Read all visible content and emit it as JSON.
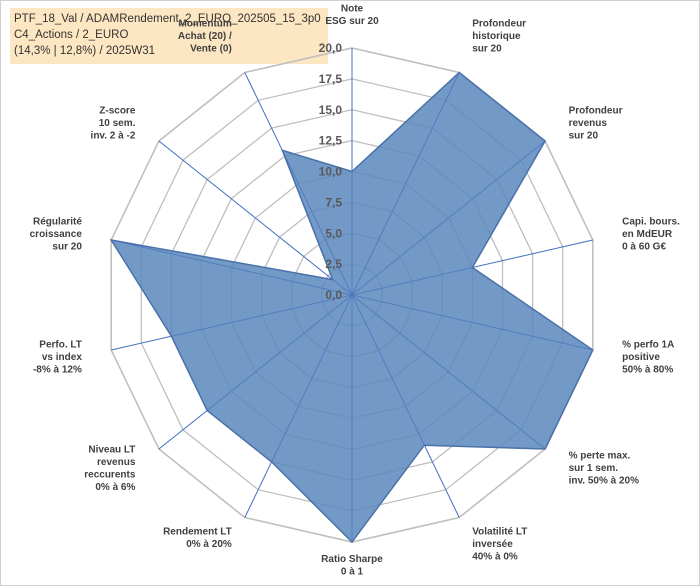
{
  "header": {
    "line1": "PTF_18_Val / ADAMRendement_2_EURO_202505_15_3p0",
    "line2": "C4_Actions / 2_EURO",
    "line3": "(14,3% | 12,8%) / 2025W31"
  },
  "colors": {
    "fill": "#5b87bd",
    "stroke": "#4a72aa",
    "grid": "#bfbfbf",
    "spoke": "#4472c4"
  },
  "chart_data": {
    "type": "radar",
    "rmax": 20,
    "ticks": [
      "0,0",
      "2,5",
      "5,0",
      "7,5",
      "10,0",
      "12,5",
      "15,0",
      "17,5",
      "20,0"
    ],
    "axes": [
      {
        "lines": [
          "Note",
          "ESG sur 20"
        ],
        "value": 10.0
      },
      {
        "lines": [
          "Profondeur",
          "historique",
          "sur 20"
        ],
        "value": 20.0
      },
      {
        "lines": [
          "Profondeur",
          "revenus",
          "sur 20"
        ],
        "value": 20.0
      },
      {
        "lines": [
          "Capi. bours.",
          "en MdEUR",
          "0 à 60 G€"
        ],
        "value": 10.0
      },
      {
        "lines": [
          "% perfo 1A",
          "positive",
          "50% à 80%"
        ],
        "value": 20.0
      },
      {
        "lines": [
          "% perte max.",
          "sur 1 sem.",
          "inv. 50% à 20%"
        ],
        "value": 20.0
      },
      {
        "lines": [
          "Volatilité LT",
          "inversée",
          "40% à 0%"
        ],
        "value": 13.5
      },
      {
        "lines": [
          "Ratio Sharpe",
          "0 à 1"
        ],
        "value": 20.0
      },
      {
        "lines": [
          "Rendement LT",
          "0% à 20%"
        ],
        "value": 15.0
      },
      {
        "lines": [
          "Niveau LT",
          "revenus",
          "reccurents",
          "0% à 6%"
        ],
        "value": 15.0
      },
      {
        "lines": [
          "Perfo. LT",
          "vs index",
          "-8% à 12%"
        ],
        "value": 15.0
      },
      {
        "lines": [
          "Régularité",
          "croissance",
          "sur 20"
        ],
        "value": 20.0
      },
      {
        "lines": [
          "Z-score",
          "10 sem.",
          "inv. 2 à -2"
        ],
        "value": 2.0
      },
      {
        "lines": [
          "Momentum",
          "Achat (20) /",
          "Vente (0)"
        ],
        "value": 13.0
      }
    ]
  }
}
